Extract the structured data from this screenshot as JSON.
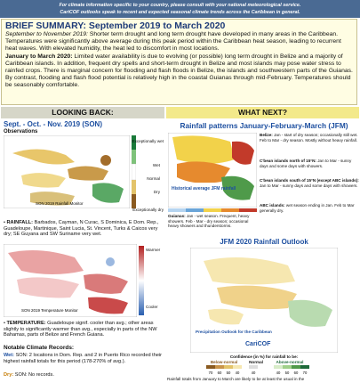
{
  "banner": {
    "lines": [
      "For climate information specific to your country, please consult with your national meteorological service.",
      "CariCOF outlooks speak to recent and expected seasonal climate trends across the Caribbean in general."
    ]
  },
  "summary": {
    "title": "BRIEF SUMMARY: September 2019 to March 2020",
    "paragraphs": [
      {
        "lead": "September to November 2019:",
        "text": " Shorter term drought and long term drought have developed in many areas in the Caribbean. Temperatures were significantly above average during this peak period within the Caribbean heat season, leading to recurrent heat waves. With elevated humidity, the heat led to discomfort in most locations."
      },
      {
        "lead": "January to March 2020:",
        "text": " Limited water availability is due to evolving (or possible) long term drought in Belize and a majority of Caribbean islands. In addition, frequent dry spells and short-term drought in Belize and most islands may pose water stress to rainfed crops. There is marginal concern for flooding and flash floods in Belize, the islands and southwestern parts of the Guianas. By contrast, flooding and flash flood potential is relatively high in the coastal Guianas through mid-February. Temperatures should be seasonably comfortable."
      }
    ]
  },
  "looking_back": {
    "header": "LOOKING BACK:",
    "title": "Sept. - Oct. - Nov. 2019 (SON)",
    "subtitle": "Observations",
    "rainfall_map": {
      "caption": "SON 2019 Rainfall Monitor",
      "legend": [
        "Exceptionally wet",
        "Wet",
        "Normal",
        "Dry",
        "Exceptionally dry"
      ]
    },
    "rainfall_bullet": {
      "lead": "RAINFALL:",
      "text": " Barbados, Cayman, N Curac, S Dominica, E Dom. Rep., Guadeloupe, Martinique, Saint Lucia, St. Vincent, Turks & Caicos very dry; SE Guyana and SW Suriname very wet."
    },
    "temperature_map": {
      "caption": "SON 2019 Temperature Monitor",
      "legend": [
        "Warmer",
        "Cooler"
      ]
    },
    "temperature_bullet": {
      "lead": "TEMPERATURE:",
      "text": " Guadeloupe signif. cooler than avg.; other areas slightly to significantly warmer than avg., especially in parts of the NW Bahamas, parts of Belize and French Guiana."
    },
    "records": {
      "title": "Notable Climate Records:",
      "items": [
        {
          "label": "Wet:",
          "text": " SON: 2 locations in Dom. Rep. and 2 in Puerto Rico recorded their highest rainfall totals for this period (178-270% of avg.)."
        },
        {
          "label": "Dry:",
          "text": " SON: No records."
        }
      ]
    }
  },
  "what_next": {
    "header": "WHAT NEXT?",
    "title": "Rainfall patterns January-February-March (JFM)",
    "map_caption": "Historical average JFM rainfall",
    "regions": [
      {
        "label": "Belize:",
        "text": " Jan - start of dry season; occasionally still wet. Feb to Mar - dry season. Mostly without heavy rainfall."
      },
      {
        "label": "C'bean islands north of 15°N:",
        "text": " Jan to Mar - sunny days and some days with showers."
      },
      {
        "label": "C'bean islands south of 15°N (except ABC islands):",
        "text": " Jan to Mar - sunny days and some days with showers."
      },
      {
        "label": "ABC islands:",
        "text": " wet season ending in Jan. Feb to Mar generally dry."
      },
      {
        "label": "Guianas:",
        "text": " Jan - wet season. Frequent, heavy showers. Feb - Mar - dry season; occasional heavy showers and thunderstorms."
      }
    ],
    "outlook": {
      "title": "JFM 2020 Rainfall Outlook",
      "map_title": "Precipitation Outlook for the Caribbean",
      "logo": "CariCOF",
      "confidence_title": "Confidence (in %) for rainfall to be:",
      "categories": [
        "Below-normal",
        "Normal",
        "Above-normal"
      ],
      "scale": [
        70,
        60,
        50,
        40,
        40,
        40,
        50,
        60,
        70
      ]
    },
    "footer": "Rainfall totals from January to March are likely to be at least the usual in the"
  }
}
